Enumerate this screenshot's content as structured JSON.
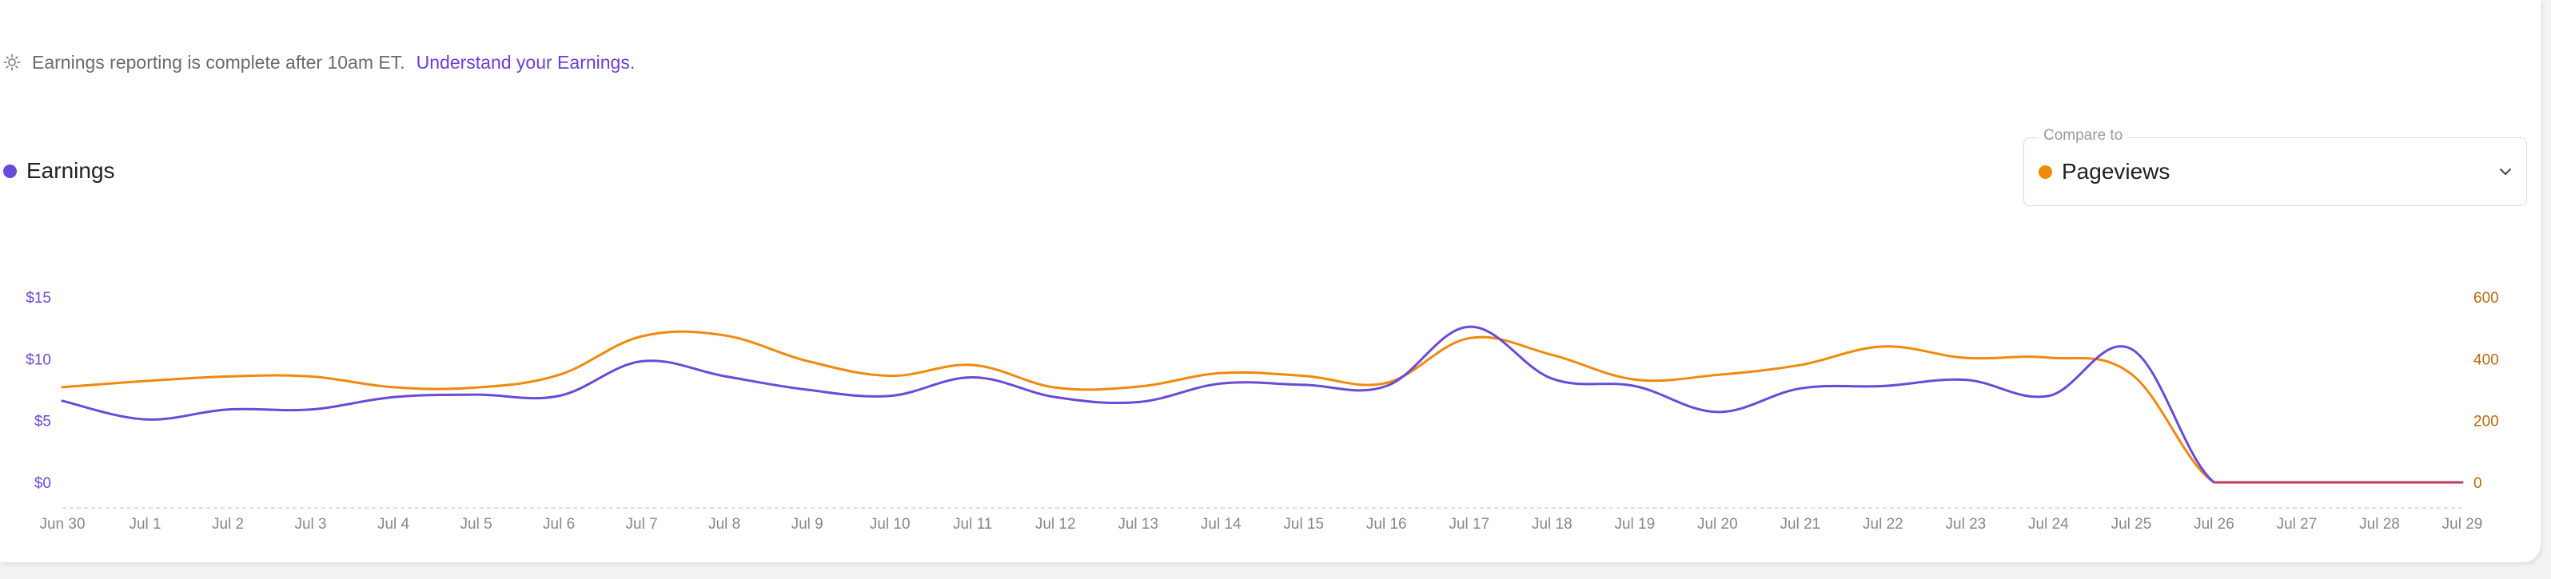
{
  "notice": {
    "text": "Earnings reporting is complete after 10am ET.",
    "link": "Understand your Earnings."
  },
  "legend": {
    "label": "Earnings"
  },
  "compare": {
    "label": "Compare to",
    "value": "Pageviews"
  },
  "colors": {
    "earnings": "#6a4ad8",
    "pageviews": "#f0890c",
    "zero_line": "#c0395a"
  },
  "icons": {
    "notice": "sun-icon",
    "dropdown": "chevron-down-icon"
  },
  "chart_data": {
    "type": "line",
    "title": "",
    "x": [
      "Jun 30",
      "Jul 1",
      "Jul 2",
      "Jul 3",
      "Jul 4",
      "Jul 5",
      "Jul 6",
      "Jul 7",
      "Jul 8",
      "Jul 9",
      "Jul 10",
      "Jul 11",
      "Jul 12",
      "Jul 13",
      "Jul 14",
      "Jul 15",
      "Jul 16",
      "Jul 17",
      "Jul 18",
      "Jul 19",
      "Jul 20",
      "Jul 21",
      "Jul 22",
      "Jul 23",
      "Jul 24",
      "Jul 25",
      "Jul 26",
      "Jul 27",
      "Jul 28",
      "Jul 29"
    ],
    "y_left": {
      "ticks": [
        "$0",
        "$5",
        "$10",
        "$15"
      ],
      "tick_values": [
        0,
        5,
        10,
        15
      ],
      "range": [
        0,
        16
      ]
    },
    "y_right": {
      "ticks": [
        "0",
        "200",
        "400",
        "600"
      ],
      "tick_values": [
        0,
        200,
        400,
        600
      ],
      "range": [
        0,
        640
      ]
    },
    "series": [
      {
        "name": "Earnings",
        "axis": "left",
        "values": [
          6.6,
          5.1,
          5.9,
          5.9,
          6.9,
          7.1,
          7.0,
          9.8,
          8.6,
          7.5,
          7.0,
          8.5,
          6.9,
          6.5,
          8.0,
          7.9,
          7.8,
          12.6,
          8.4,
          7.8,
          5.7,
          7.6,
          7.8,
          8.3,
          7.0,
          10.8,
          0,
          0,
          0,
          0
        ]
      },
      {
        "name": "Pageviews",
        "axis": "right",
        "values": [
          308,
          328,
          343,
          343,
          308,
          307,
          348,
          473,
          476,
          393,
          345,
          380,
          307,
          310,
          354,
          345,
          322,
          467,
          413,
          333,
          348,
          380,
          440,
          403,
          404,
          351,
          0,
          0,
          0,
          0
        ]
      }
    ],
    "grid": false,
    "legend": "top-left"
  }
}
